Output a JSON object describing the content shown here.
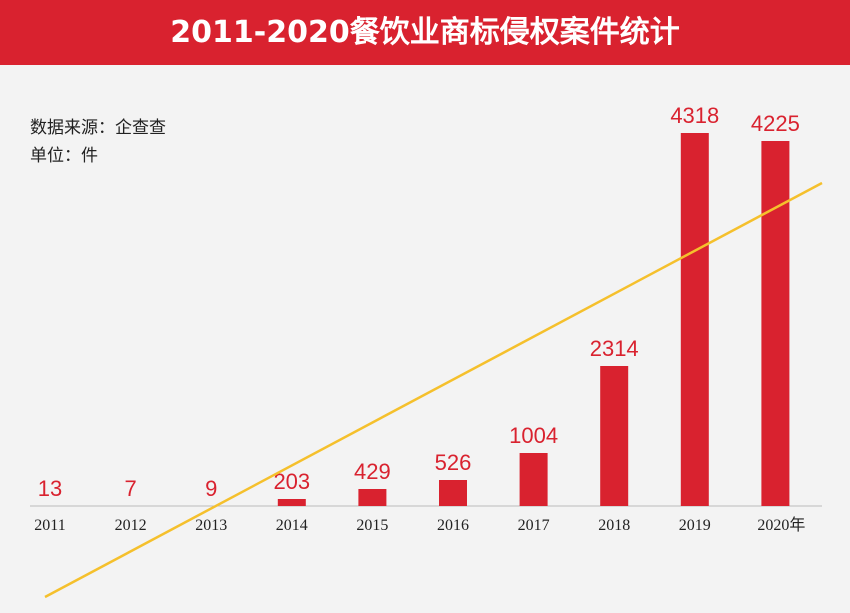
{
  "header": {
    "title": "2011-2020餐饮业商标侵权案件统计"
  },
  "notes": {
    "source": "数据来源：企查查",
    "unit": "单位：件"
  },
  "chart_data": {
    "type": "bar",
    "title": "2011-2020餐饮业商标侵权案件统计",
    "categories": [
      "2011",
      "2012",
      "2013",
      "2014",
      "2015",
      "2016",
      "2017",
      "2018",
      "2019",
      "2020年"
    ],
    "values": [
      13,
      7,
      9,
      203,
      429,
      526,
      1004,
      2314,
      4318,
      4225
    ],
    "trendline": true,
    "xlabel": "",
    "ylabel": "件",
    "colors": {
      "bar": "#d9222f",
      "trend": "#f5c02c",
      "axis": "#bbbbbb"
    }
  }
}
